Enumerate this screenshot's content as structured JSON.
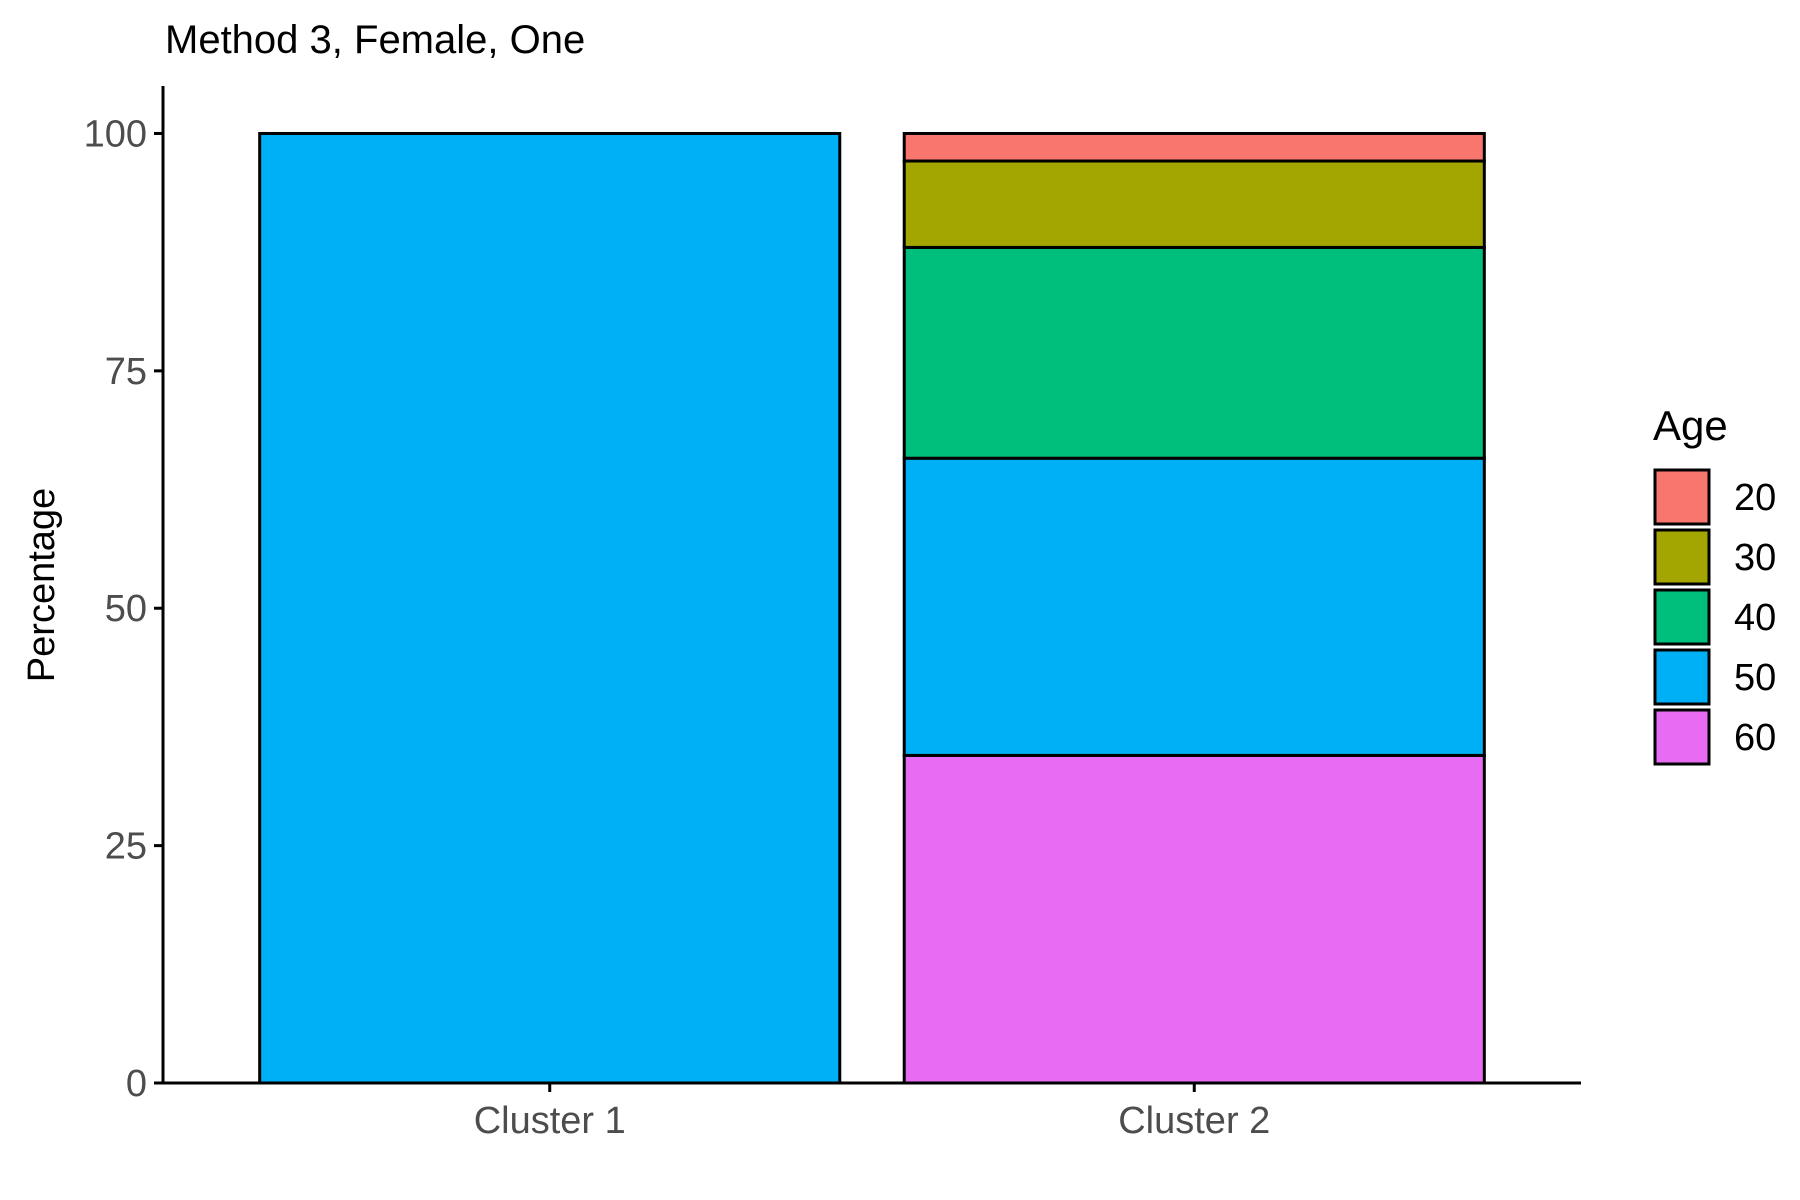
{
  "chart_data": {
    "type": "bar",
    "stacked": true,
    "title": "Method 3, Female, One",
    "xlabel": "",
    "ylabel": "Percentage",
    "ylim": [
      0,
      105
    ],
    "yticks": [
      "0",
      "25",
      "50",
      "75",
      "100"
    ],
    "grid": false,
    "legend_position": "right",
    "categories": [
      "Cluster 1",
      "Cluster 2"
    ],
    "legend_title": "Age",
    "series": [
      {
        "name": "20",
        "color": "#F8766D",
        "values": [
          0,
          2.9
        ]
      },
      {
        "name": "30",
        "color": "#A3A500",
        "values": [
          0,
          9.1
        ]
      },
      {
        "name": "40",
        "color": "#00BF7D",
        "values": [
          0,
          22.2
        ]
      },
      {
        "name": "50",
        "color": "#00B0F6",
        "values": [
          100,
          31.3
        ]
      },
      {
        "name": "60",
        "color": "#E76BF3",
        "values": [
          0,
          34.5
        ]
      }
    ]
  }
}
